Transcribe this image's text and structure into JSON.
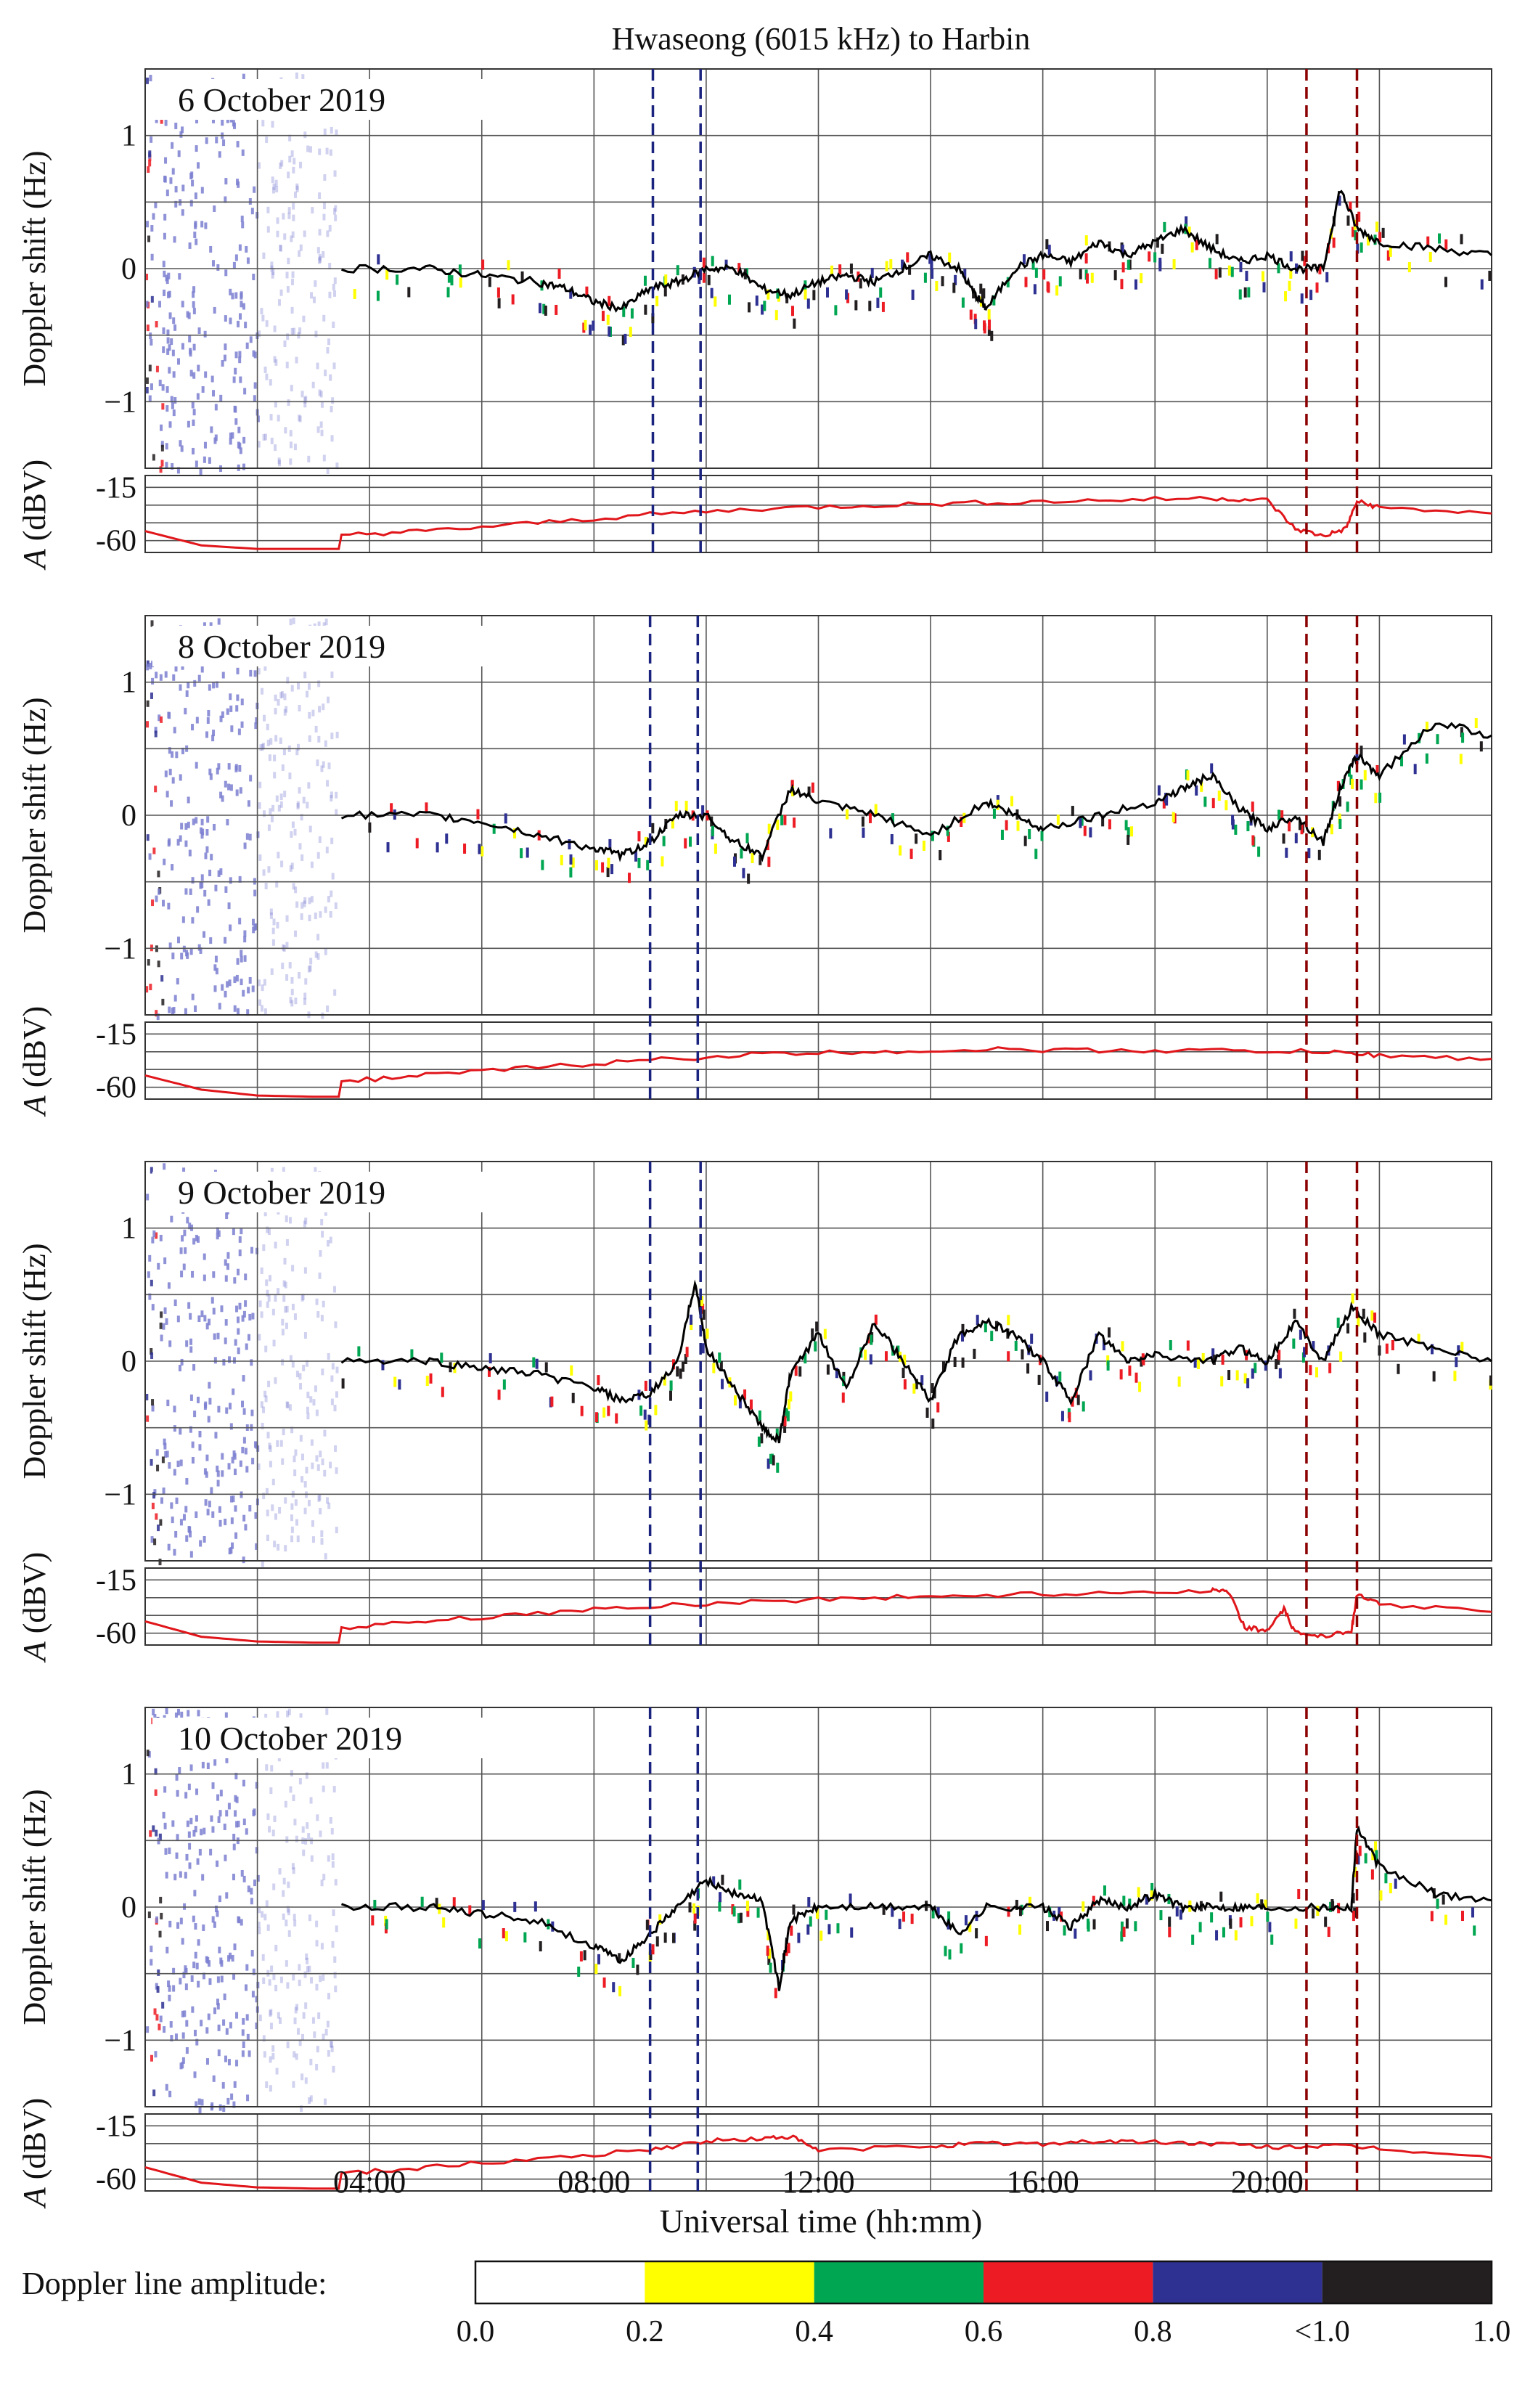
{
  "chart_data": {
    "type": "line",
    "title": "Hwaseong (6015 kHz) to Harbin",
    "xlabel": "Universal time (hh:mm)",
    "x_ticks": [
      "04:00",
      "08:00",
      "12:00",
      "16:00",
      "20:00"
    ],
    "xlim_hours": [
      0,
      24
    ],
    "doppler_ylabel": "Doppler shift (Hz)",
    "doppler_ylim": [
      -1.5,
      1.5
    ],
    "doppler_ticks": [
      "1",
      "0",
      "−1"
    ],
    "amp_ylabel_italic": "A",
    "amp_ylabel_unit": " (dBV)",
    "amp_ylim": [
      -70,
      -5
    ],
    "amp_ticks": [
      "-15",
      "-60"
    ],
    "colorbar": {
      "label": "Doppler line amplitude:",
      "ticks": [
        "0.0",
        "0.2",
        "0.4",
        "0.6",
        "0.8",
        "<1.0",
        "1.0"
      ],
      "colors": [
        "#ffffff",
        "#ffff00",
        "#00a651",
        "#ed1c24",
        "#2e3192",
        "#231f20"
      ]
    },
    "colors": {
      "doppler_curve": "#000000",
      "amplitude_curve": "#e0161b",
      "blue_markers": "#1a237e",
      "red_markers": "#8b0000"
    },
    "panels": [
      {
        "date": "6 October 2019",
        "blue_marker_hours": [
          9.05,
          9.9
        ],
        "red_marker_hours": [
          20.7,
          21.6
        ],
        "doppler": [
          [
            3.5,
            0
          ],
          [
            5,
            0
          ],
          [
            6,
            -0.05
          ],
          [
            7,
            -0.1
          ],
          [
            7.5,
            -0.15
          ],
          [
            8,
            -0.25
          ],
          [
            8.5,
            -0.3
          ],
          [
            9,
            -0.15
          ],
          [
            9.5,
            -0.1
          ],
          [
            10,
            0
          ],
          [
            10.5,
            0
          ],
          [
            11,
            -0.15
          ],
          [
            11.5,
            -0.2
          ],
          [
            12,
            -0.1
          ],
          [
            12.5,
            -0.05
          ],
          [
            13,
            -0.1
          ],
          [
            13.5,
            0
          ],
          [
            14,
            0.1
          ],
          [
            14.5,
            0
          ],
          [
            14.8,
            -0.2
          ],
          [
            15,
            -0.3
          ],
          [
            15.5,
            0
          ],
          [
            16,
            0.1
          ],
          [
            16.5,
            0.05
          ],
          [
            17,
            0.2
          ],
          [
            17.5,
            0.1
          ],
          [
            18,
            0.2
          ],
          [
            18.5,
            0.3
          ],
          [
            19,
            0.15
          ],
          [
            19.5,
            0.05
          ],
          [
            20,
            0.1
          ],
          [
            20.5,
            0
          ],
          [
            21,
            0
          ],
          [
            21.3,
            0.6
          ],
          [
            21.6,
            0.3
          ],
          [
            22,
            0.2
          ],
          [
            23,
            0.15
          ],
          [
            24,
            0.1
          ]
        ],
        "amplitude": [
          [
            0,
            -52
          ],
          [
            1,
            -64
          ],
          [
            2,
            -67
          ],
          [
            3,
            -67
          ],
          [
            3.45,
            -67
          ],
          [
            3.5,
            -55
          ],
          [
            5,
            -52
          ],
          [
            7,
            -45
          ],
          [
            9,
            -38
          ],
          [
            11,
            -33
          ],
          [
            13,
            -30
          ],
          [
            15,
            -28
          ],
          [
            17,
            -26
          ],
          [
            19,
            -24
          ],
          [
            20,
            -26
          ],
          [
            20.5,
            -50
          ],
          [
            21,
            -56
          ],
          [
            21.4,
            -50
          ],
          [
            21.6,
            -27
          ],
          [
            22,
            -32
          ],
          [
            24,
            -37
          ]
        ]
      },
      {
        "date": "8 October 2019",
        "blue_marker_hours": [
          9.0,
          9.85
        ],
        "red_marker_hours": [
          20.7,
          21.6
        ],
        "doppler": [
          [
            3.5,
            0
          ],
          [
            5,
            0
          ],
          [
            6,
            -0.05
          ],
          [
            7,
            -0.15
          ],
          [
            8,
            -0.25
          ],
          [
            8.5,
            -0.3
          ],
          [
            9,
            -0.2
          ],
          [
            9.5,
            0
          ],
          [
            10,
            0
          ],
          [
            10.5,
            -0.2
          ],
          [
            11,
            -0.3
          ],
          [
            11.5,
            0.2
          ],
          [
            12,
            0.1
          ],
          [
            13,
            0
          ],
          [
            14,
            -0.15
          ],
          [
            15,
            0.1
          ],
          [
            15.5,
            0
          ],
          [
            16,
            -0.1
          ],
          [
            17,
            0
          ],
          [
            18,
            0.1
          ],
          [
            18.5,
            0.2
          ],
          [
            19,
            0.3
          ],
          [
            19.5,
            0.05
          ],
          [
            20,
            -0.1
          ],
          [
            20.5,
            0
          ],
          [
            21,
            -0.2
          ],
          [
            21.3,
            0.2
          ],
          [
            21.6,
            0.45
          ],
          [
            22,
            0.3
          ],
          [
            23,
            0.7
          ],
          [
            24,
            0.6
          ]
        ],
        "amplitude": [
          [
            0,
            -50
          ],
          [
            1,
            -62
          ],
          [
            2,
            -67
          ],
          [
            3,
            -68
          ],
          [
            3.45,
            -68
          ],
          [
            3.5,
            -55
          ],
          [
            5,
            -50
          ],
          [
            7,
            -43
          ],
          [
            9,
            -37
          ],
          [
            11,
            -32
          ],
          [
            13,
            -30
          ],
          [
            15,
            -28
          ],
          [
            17,
            -29
          ],
          [
            19,
            -29
          ],
          [
            21,
            -30
          ],
          [
            22,
            -33
          ],
          [
            24,
            -36
          ]
        ]
      },
      {
        "date": "9 October 2019",
        "blue_marker_hours": [
          9.0,
          9.9
        ],
        "red_marker_hours": [
          20.7,
          21.6
        ],
        "doppler": [
          [
            3.5,
            0
          ],
          [
            5,
            0
          ],
          [
            6,
            -0.05
          ],
          [
            7,
            -0.1
          ],
          [
            8,
            -0.2
          ],
          [
            8.5,
            -0.3
          ],
          [
            9,
            -0.25
          ],
          [
            9.5,
            0
          ],
          [
            9.8,
            0.6
          ],
          [
            10,
            0.1
          ],
          [
            10.5,
            -0.2
          ],
          [
            11,
            -0.5
          ],
          [
            11.3,
            -0.6
          ],
          [
            11.5,
            -0.1
          ],
          [
            12,
            0.2
          ],
          [
            12.5,
            -0.2
          ],
          [
            13,
            0.3
          ],
          [
            13.5,
            0
          ],
          [
            14,
            -0.3
          ],
          [
            14.5,
            0.2
          ],
          [
            15,
            0.3
          ],
          [
            15.5,
            0.2
          ],
          [
            16,
            0
          ],
          [
            16.5,
            -0.3
          ],
          [
            17,
            0.2
          ],
          [
            17.5,
            0
          ],
          [
            18,
            0.05
          ],
          [
            19,
            0
          ],
          [
            19.5,
            0.1
          ],
          [
            20,
            0
          ],
          [
            20.5,
            0.3
          ],
          [
            21,
            0
          ],
          [
            21.5,
            0.4
          ],
          [
            22,
            0.2
          ],
          [
            23,
            0.1
          ],
          [
            24,
            0
          ]
        ],
        "amplitude": [
          [
            0,
            -50
          ],
          [
            1,
            -63
          ],
          [
            2,
            -67
          ],
          [
            3,
            -68
          ],
          [
            3.45,
            -68
          ],
          [
            3.5,
            -55
          ],
          [
            5,
            -50
          ],
          [
            7,
            -43
          ],
          [
            9,
            -37
          ],
          [
            11,
            -33
          ],
          [
            13,
            -30
          ],
          [
            15,
            -28
          ],
          [
            17,
            -26
          ],
          [
            19,
            -24
          ],
          [
            19.3,
            -24
          ],
          [
            19.6,
            -55
          ],
          [
            20,
            -58
          ],
          [
            20.3,
            -40
          ],
          [
            20.5,
            -60
          ],
          [
            21,
            -62
          ],
          [
            21.5,
            -58
          ],
          [
            21.6,
            -28
          ],
          [
            22,
            -35
          ],
          [
            24,
            -42
          ]
        ]
      },
      {
        "date": "10 October 2019",
        "blue_marker_hours": [
          9.0,
          9.85
        ],
        "red_marker_hours": [
          20.7,
          21.6
        ],
        "doppler": [
          [
            3.5,
            0
          ],
          [
            5,
            0
          ],
          [
            6,
            -0.05
          ],
          [
            7,
            -0.1
          ],
          [
            8,
            -0.3
          ],
          [
            8.5,
            -0.4
          ],
          [
            9,
            -0.2
          ],
          [
            9.5,
            0
          ],
          [
            10,
            0.2
          ],
          [
            10.5,
            0.1
          ],
          [
            11,
            0.05
          ],
          [
            11.3,
            -0.6
          ],
          [
            11.5,
            -0.1
          ],
          [
            12,
            0
          ],
          [
            13,
            0
          ],
          [
            14,
            0
          ],
          [
            14.5,
            -0.2
          ],
          [
            15,
            0
          ],
          [
            16,
            0
          ],
          [
            16.5,
            -0.15
          ],
          [
            17,
            0.05
          ],
          [
            17.5,
            0
          ],
          [
            18,
            0.1
          ],
          [
            18.5,
            0
          ],
          [
            19,
            0
          ],
          [
            19.5,
            0
          ],
          [
            20,
            0
          ],
          [
            21,
            0
          ],
          [
            21.5,
            0
          ],
          [
            21.6,
            0.6
          ],
          [
            22,
            0.3
          ],
          [
            23,
            0.1
          ],
          [
            24,
            0.05
          ]
        ],
        "amplitude": [
          [
            0,
            -50
          ],
          [
            1,
            -63
          ],
          [
            2,
            -67
          ],
          [
            3,
            -68
          ],
          [
            3.45,
            -68
          ],
          [
            3.5,
            -55
          ],
          [
            5,
            -50
          ],
          [
            7,
            -43
          ],
          [
            9,
            -35
          ],
          [
            10,
            -28
          ],
          [
            11,
            -26
          ],
          [
            11.5,
            -24
          ],
          [
            12,
            -36
          ],
          [
            14,
            -32
          ],
          [
            15,
            -30
          ],
          [
            16,
            -30
          ],
          [
            17,
            -28
          ],
          [
            18,
            -29
          ],
          [
            19,
            -30
          ],
          [
            20,
            -33
          ],
          [
            21,
            -32
          ],
          [
            22,
            -34
          ],
          [
            24,
            -42
          ]
        ]
      }
    ]
  }
}
